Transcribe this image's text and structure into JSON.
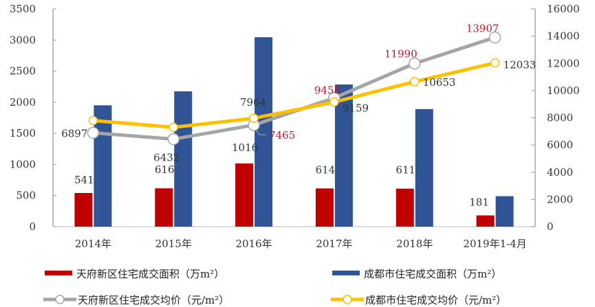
{
  "chart_data": {
    "type": "bar+line",
    "categories": [
      "2014年",
      "2015年",
      "2016年",
      "2017年",
      "2018年",
      "2019年1-4月"
    ],
    "left_axis": {
      "ylim": [
        0,
        3500
      ],
      "ticks": [
        "0",
        "500",
        "1000",
        "1500",
        "2000",
        "2500",
        "3000",
        "3500"
      ]
    },
    "right_axis": {
      "ylim": [
        0,
        16000
      ],
      "ticks": [
        "0",
        "2000",
        "4000",
        "6000",
        "8000",
        "10000",
        "12000",
        "14000",
        "16000"
      ]
    },
    "series": [
      {
        "name": "天府新区住宅成交面积（万m²）",
        "type": "bar",
        "axis": "left",
        "color": "#C00000",
        "values": [
          541,
          616,
          1016,
          614,
          611,
          181
        ],
        "labels": [
          "541",
          "616",
          "1016",
          "614",
          "611",
          "181"
        ]
      },
      {
        "name": "成都市住宅成交面积（万m²）",
        "type": "bar",
        "axis": "left",
        "color": "#2F5597",
        "values": [
          1950,
          2175,
          3045,
          2285,
          1890,
          490
        ]
      },
      {
        "name": "天府新区住宅成交均价（元/m²）",
        "type": "line",
        "axis": "right",
        "color": "#A5A5A5",
        "values": [
          6897,
          6432,
          7465,
          9458,
          11990,
          13907
        ],
        "labels": [
          "6897",
          "6432",
          "7465",
          "9458",
          "11990",
          "13907"
        ]
      },
      {
        "name": "成都市住宅成交均价（元/m²）",
        "type": "line",
        "axis": "right",
        "color": "#FFC000",
        "values": [
          7800,
          7300,
          7964,
          9159,
          10653,
          12033
        ],
        "labels": [
          null,
          null,
          "7964",
          "9159",
          "10653",
          "12033"
        ]
      }
    ],
    "label_colors": {
      "dark": "#333333",
      "red": "#C0142D"
    },
    "legend_position": "bottom",
    "grid": false
  }
}
